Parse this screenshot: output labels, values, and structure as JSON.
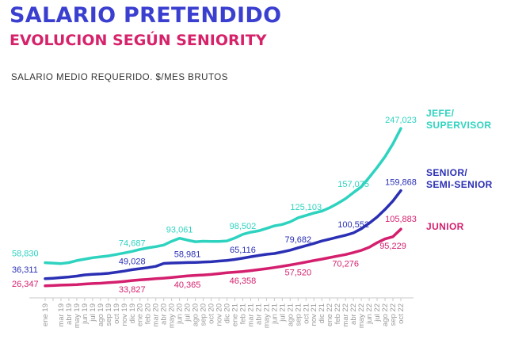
{
  "header": {
    "title": "SALARIO PRETENDIDO",
    "subtitle": "EVOLUCION SEGÚN SENIORITY",
    "unit_label": "SALARIO MEDIO REQUERIDO. $/MES BRUTOS"
  },
  "colors": {
    "title": "#3a3fd0",
    "subtitle": "#d6226a",
    "jefe": "#2ed3c0",
    "senior": "#2a2fb4",
    "junior": "#d41f6e"
  },
  "chart_data": {
    "type": "line",
    "title": "SALARIO PRETENDIDO",
    "subtitle": "EVOLUCION SEGÚN SENIORITY",
    "ylabel": "SALARIO MEDIO REQUERIDO. $/MES BRUTOS",
    "ylim": [
      0,
      280000
    ],
    "grid": false,
    "legend": "series labels at right end of lines",
    "categories": [
      "ene 19",
      "feb 19",
      "mar 19",
      "abr 19",
      "may 19",
      "jun 19",
      "jul 19",
      "ago 19",
      "sep 19",
      "oct 19",
      "nov 19",
      "dic 19",
      "ene 20",
      "feb 20",
      "mar 20",
      "abr 20",
      "may 20",
      "jun 20",
      "jul 20",
      "ago 20",
      "sep 20",
      "oct 20",
      "nov 20",
      "dic 20",
      "ene 21",
      "feb 21",
      "mar 21",
      "abr 21",
      "may 21",
      "jun 21",
      "jul 21",
      "ago 21",
      "sep 21",
      "oct 21",
      "nov 21",
      "dic 21",
      "ene 22",
      "feb 22",
      "mar 22",
      "abr 22",
      "may 22",
      "jun 22",
      "jul 22",
      "ago 22",
      "sep 22",
      "oct 22"
    ],
    "tick_labels": [
      "ene 19",
      "mar 19",
      "abr 19",
      "may 19",
      "jun 19",
      "jul 19",
      "ago 19",
      "sep 19",
      "oct 19",
      "nov 19",
      "dic 19",
      "ene 20",
      "feb 20",
      "mar 20",
      "abr 20",
      "may 20",
      "jun 20",
      "jul 20",
      "ago 20",
      "sep 20",
      "oct 20",
      "nov 20",
      "dic 20",
      "ene 21",
      "feb 21",
      "mar 21",
      "abr 21",
      "may 21",
      "jun 21",
      "jul 21",
      "ago 21",
      "sep 21",
      "oct 21",
      "nov 21",
      "dic 21",
      "ene 22",
      "feb 22",
      "mar 22",
      "abr 22",
      "may 22",
      "jun 22",
      "jul 22",
      "ago 22",
      "sep 22",
      "oct 22"
    ],
    "series": [
      {
        "name": "JEFE/ SUPERVISOR",
        "name_lines": [
          "JEFE/",
          "SUPERVISOR"
        ],
        "color": "#2ed3c0",
        "values": [
          58830,
          58200,
          57600,
          58900,
          61800,
          63800,
          65800,
          67100,
          68300,
          70300,
          72400,
          74687,
          77400,
          79600,
          81300,
          83600,
          88800,
          93061,
          90400,
          88200,
          88900,
          88600,
          88700,
          89300,
          93400,
          98502,
          101500,
          103500,
          106900,
          110500,
          112400,
          116100,
          121800,
          125103,
          128500,
          131100,
          135900,
          141900,
          148600,
          157075,
          165200,
          178400,
          192400,
          207400,
          225400,
          247023
        ],
        "labels": [
          {
            "text": "58,830",
            "index": 0
          },
          {
            "text": "74,687",
            "index": 11
          },
          {
            "text": "93,061",
            "index": 17
          },
          {
            "text": "98,502",
            "index": 25
          },
          {
            "text": "125,103",
            "index": 33
          },
          {
            "text": "157,075",
            "index": 39
          },
          {
            "text": "247,023",
            "index": 45
          }
        ]
      },
      {
        "name": "SENIOR/ SEMI-SENIOR",
        "name_lines": [
          "SENIOR/",
          "SEMI-SENIOR"
        ],
        "color": "#2a2fb4",
        "values": [
          36311,
          37000,
          37900,
          38800,
          40000,
          41700,
          42600,
          43000,
          43900,
          45400,
          47000,
          49028,
          50500,
          51900,
          53700,
          57800,
          58300,
          58600,
          58981,
          59200,
          59700,
          60100,
          61100,
          62000,
          63300,
          65116,
          67100,
          68900,
          70600,
          71700,
          73900,
          76300,
          79682,
          82700,
          85800,
          89200,
          91900,
          94700,
          97300,
          100552,
          106400,
          114200,
          122900,
          133400,
          145300,
          159868
        ],
        "labels": [
          {
            "text": "36,311",
            "index": 0
          },
          {
            "text": "49,028",
            "index": 11
          },
          {
            "text": "58,981",
            "index": 18
          },
          {
            "text": "65,116",
            "index": 25
          },
          {
            "text": "79,682",
            "index": 32
          },
          {
            "text": "100,552",
            "index": 39
          },
          {
            "text": "159,868",
            "index": 45
          }
        ]
      },
      {
        "name": "JUNIOR",
        "name_lines": [
          "JUNIOR"
        ],
        "color": "#d41f6e",
        "values": [
          26347,
          26800,
          27300,
          27700,
          28100,
          28900,
          29500,
          30000,
          30800,
          31600,
          32600,
          33827,
          34800,
          35500,
          36300,
          37100,
          38100,
          39200,
          40365,
          41000,
          41500,
          42300,
          43400,
          44800,
          45600,
          46358,
          47700,
          49000,
          50500,
          52000,
          53800,
          55600,
          57520,
          59700,
          61800,
          63800,
          66000,
          68100,
          70276,
          73000,
          76100,
          80400,
          86900,
          92100,
          95229,
          105883
        ],
        "labels": [
          {
            "text": "26,347",
            "index": 0
          },
          {
            "text": "33,827",
            "index": 11
          },
          {
            "text": "40,365",
            "index": 18
          },
          {
            "text": "46,358",
            "index": 25
          },
          {
            "text": "57,520",
            "index": 32
          },
          {
            "text": "70,276",
            "index": 38
          },
          {
            "text": "95,229",
            "index": 44
          },
          {
            "text": "105,883",
            "index": 45
          }
        ]
      }
    ]
  }
}
